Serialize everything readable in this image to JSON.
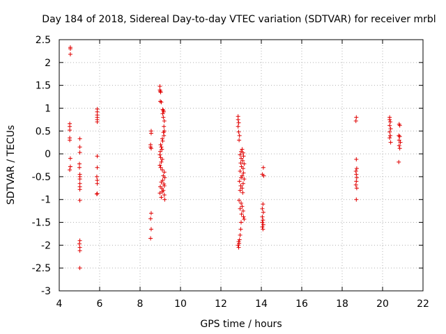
{
  "chart_data": {
    "type": "scatter",
    "title": "Day 184 of 2018, Sidereal Day-to-day VTEC variation (SDTVAR) for receiver mrbl",
    "xlabel": "GPS time / hours",
    "ylabel": "SDTVAR / TECUs",
    "xlim": [
      4,
      22
    ],
    "ylim": [
      -3,
      2.5
    ],
    "xticks": [
      4,
      6,
      8,
      10,
      12,
      14,
      16,
      18,
      20,
      22
    ],
    "yticks": [
      -3,
      -2.5,
      -2,
      -1.5,
      -1,
      -0.5,
      0,
      0.5,
      1,
      1.5,
      2,
      2.5
    ],
    "xtick_labels": [
      "4",
      "6",
      "8",
      "10",
      "12",
      "14",
      "16",
      "18",
      "20",
      "22"
    ],
    "ytick_labels": [
      "-3",
      "-2.5",
      "-2",
      "-1.5",
      "-1",
      "-0.5",
      "0",
      "0.5",
      "1",
      "1.5",
      "2",
      "2.5"
    ],
    "grid": true,
    "marker": "+",
    "color": "#e00000",
    "series": [
      {
        "name": "SDTVAR",
        "points": [
          [
            4.55,
            2.33
          ],
          [
            4.55,
            2.3
          ],
          [
            4.55,
            2.18
          ],
          [
            4.52,
            0.66
          ],
          [
            4.52,
            0.6
          ],
          [
            4.52,
            0.52
          ],
          [
            4.52,
            0.35
          ],
          [
            4.52,
            0.3
          ],
          [
            4.55,
            -0.1
          ],
          [
            4.55,
            -0.28
          ],
          [
            4.52,
            -0.35
          ],
          [
            5.02,
            0.33
          ],
          [
            5.02,
            0.15
          ],
          [
            5.02,
            0.03
          ],
          [
            5.0,
            -0.22
          ],
          [
            5.0,
            -0.3
          ],
          [
            5.02,
            -0.45
          ],
          [
            5.02,
            -0.5
          ],
          [
            5.02,
            -0.55
          ],
          [
            5.02,
            -0.65
          ],
          [
            5.02,
            -0.72
          ],
          [
            5.02,
            -0.78
          ],
          [
            5.02,
            -1.02
          ],
          [
            5.02,
            -1.9
          ],
          [
            5.0,
            -1.97
          ],
          [
            5.02,
            -2.05
          ],
          [
            5.02,
            -2.12
          ],
          [
            5.02,
            -2.5
          ],
          [
            5.88,
            0.98
          ],
          [
            5.88,
            0.92
          ],
          [
            5.88,
            0.85
          ],
          [
            5.88,
            0.8
          ],
          [
            5.88,
            0.75
          ],
          [
            5.88,
            0.7
          ],
          [
            5.88,
            -0.05
          ],
          [
            5.88,
            -0.3
          ],
          [
            5.86,
            -0.5
          ],
          [
            5.88,
            -0.58
          ],
          [
            5.88,
            -0.65
          ],
          [
            5.88,
            -0.87
          ],
          [
            5.86,
            -0.88
          ],
          [
            8.55,
            0.5
          ],
          [
            8.55,
            0.45
          ],
          [
            8.52,
            0.2
          ],
          [
            8.52,
            0.15
          ],
          [
            8.55,
            0.12
          ],
          [
            8.55,
            -1.3
          ],
          [
            8.52,
            -1.42
          ],
          [
            8.55,
            -1.65
          ],
          [
            8.52,
            -1.85
          ],
          [
            8.98,
            1.48
          ],
          [
            8.98,
            1.4
          ],
          [
            9.0,
            1.37
          ],
          [
            9.02,
            1.35
          ],
          [
            9.0,
            1.15
          ],
          [
            9.05,
            1.13
          ],
          [
            9.12,
            0.97
          ],
          [
            9.15,
            0.95
          ],
          [
            9.17,
            0.92
          ],
          [
            9.12,
            0.88
          ],
          [
            9.15,
            0.8
          ],
          [
            9.2,
            0.72
          ],
          [
            9.18,
            0.6
          ],
          [
            9.2,
            0.5
          ],
          [
            9.16,
            0.47
          ],
          [
            9.18,
            0.4
          ],
          [
            9.1,
            0.33
          ],
          [
            9.12,
            0.28
          ],
          [
            9.02,
            0.2
          ],
          [
            9.05,
            0.15
          ],
          [
            9.08,
            0.1
          ],
          [
            9.0,
            0.05
          ],
          [
            8.98,
            -0.02
          ],
          [
            9.02,
            -0.08
          ],
          [
            9.1,
            -0.12
          ],
          [
            9.05,
            -0.18
          ],
          [
            8.98,
            -0.25
          ],
          [
            9.02,
            -0.3
          ],
          [
            9.1,
            -0.35
          ],
          [
            9.2,
            -0.4
          ],
          [
            9.15,
            -0.48
          ],
          [
            9.22,
            -0.52
          ],
          [
            9.12,
            -0.58
          ],
          [
            9.05,
            -0.62
          ],
          [
            9.18,
            -0.66
          ],
          [
            9.2,
            -0.7
          ],
          [
            9.0,
            -0.72
          ],
          [
            9.08,
            -0.76
          ],
          [
            9.15,
            -0.8
          ],
          [
            9.1,
            -0.83
          ],
          [
            8.98,
            -0.86
          ],
          [
            9.2,
            -0.9
          ],
          [
            9.05,
            -0.95
          ],
          [
            9.22,
            -1.0
          ],
          [
            12.85,
            0.82
          ],
          [
            12.85,
            0.75
          ],
          [
            12.88,
            0.68
          ],
          [
            12.85,
            0.6
          ],
          [
            12.88,
            0.48
          ],
          [
            12.92,
            0.4
          ],
          [
            12.9,
            0.3
          ],
          [
            13.05,
            0.1
          ],
          [
            13.0,
            0.05
          ],
          [
            13.1,
            0.02
          ],
          [
            12.95,
            -0.02
          ],
          [
            13.12,
            -0.05
          ],
          [
            13.0,
            -0.1
          ],
          [
            13.08,
            -0.15
          ],
          [
            12.98,
            -0.2
          ],
          [
            13.15,
            -0.22
          ],
          [
            13.02,
            -0.28
          ],
          [
            13.1,
            -0.32
          ],
          [
            12.95,
            -0.38
          ],
          [
            13.12,
            -0.42
          ],
          [
            13.05,
            -0.48
          ],
          [
            13.0,
            -0.52
          ],
          [
            13.15,
            -0.55
          ],
          [
            12.92,
            -0.6
          ],
          [
            13.1,
            -0.65
          ],
          [
            12.98,
            -0.7
          ],
          [
            13.05,
            -0.75
          ],
          [
            12.95,
            -0.8
          ],
          [
            13.08,
            -0.85
          ],
          [
            12.9,
            -1.02
          ],
          [
            13.0,
            -1.08
          ],
          [
            13.05,
            -1.15
          ],
          [
            12.95,
            -1.2
          ],
          [
            13.1,
            -1.25
          ],
          [
            13.02,
            -1.32
          ],
          [
            13.12,
            -1.38
          ],
          [
            13.15,
            -1.43
          ],
          [
            13.0,
            -1.5
          ],
          [
            12.98,
            -1.65
          ],
          [
            12.95,
            -1.78
          ],
          [
            12.92,
            -1.88
          ],
          [
            12.88,
            -1.92
          ],
          [
            12.9,
            -1.96
          ],
          [
            12.85,
            -2.0
          ],
          [
            12.88,
            -2.05
          ],
          [
            14.1,
            -0.3
          ],
          [
            14.05,
            -0.45
          ],
          [
            14.12,
            -0.48
          ],
          [
            14.08,
            -1.1
          ],
          [
            14.05,
            -1.2
          ],
          [
            14.1,
            -1.28
          ],
          [
            14.05,
            -1.38
          ],
          [
            14.08,
            -1.45
          ],
          [
            14.05,
            -1.5
          ],
          [
            14.1,
            -1.55
          ],
          [
            14.05,
            -1.6
          ],
          [
            14.08,
            -1.65
          ],
          [
            18.7,
            0.8
          ],
          [
            18.68,
            0.72
          ],
          [
            18.7,
            -0.12
          ],
          [
            18.72,
            -0.32
          ],
          [
            18.68,
            -0.38
          ],
          [
            18.7,
            -0.45
          ],
          [
            18.72,
            -0.52
          ],
          [
            18.7,
            -0.6
          ],
          [
            18.68,
            -0.68
          ],
          [
            18.72,
            -0.75
          ],
          [
            18.7,
            -1.0
          ],
          [
            20.35,
            0.8
          ],
          [
            20.35,
            0.75
          ],
          [
            20.38,
            0.7
          ],
          [
            20.35,
            0.62
          ],
          [
            20.4,
            0.55
          ],
          [
            20.35,
            0.48
          ],
          [
            20.38,
            0.4
          ],
          [
            20.35,
            0.35
          ],
          [
            20.4,
            0.25
          ],
          [
            20.82,
            0.65
          ],
          [
            20.85,
            0.62
          ],
          [
            20.8,
            0.4
          ],
          [
            20.85,
            0.38
          ],
          [
            20.82,
            0.3
          ],
          [
            20.88,
            0.25
          ],
          [
            20.82,
            0.18
          ],
          [
            20.85,
            0.12
          ],
          [
            20.8,
            -0.18
          ]
        ]
      }
    ]
  }
}
